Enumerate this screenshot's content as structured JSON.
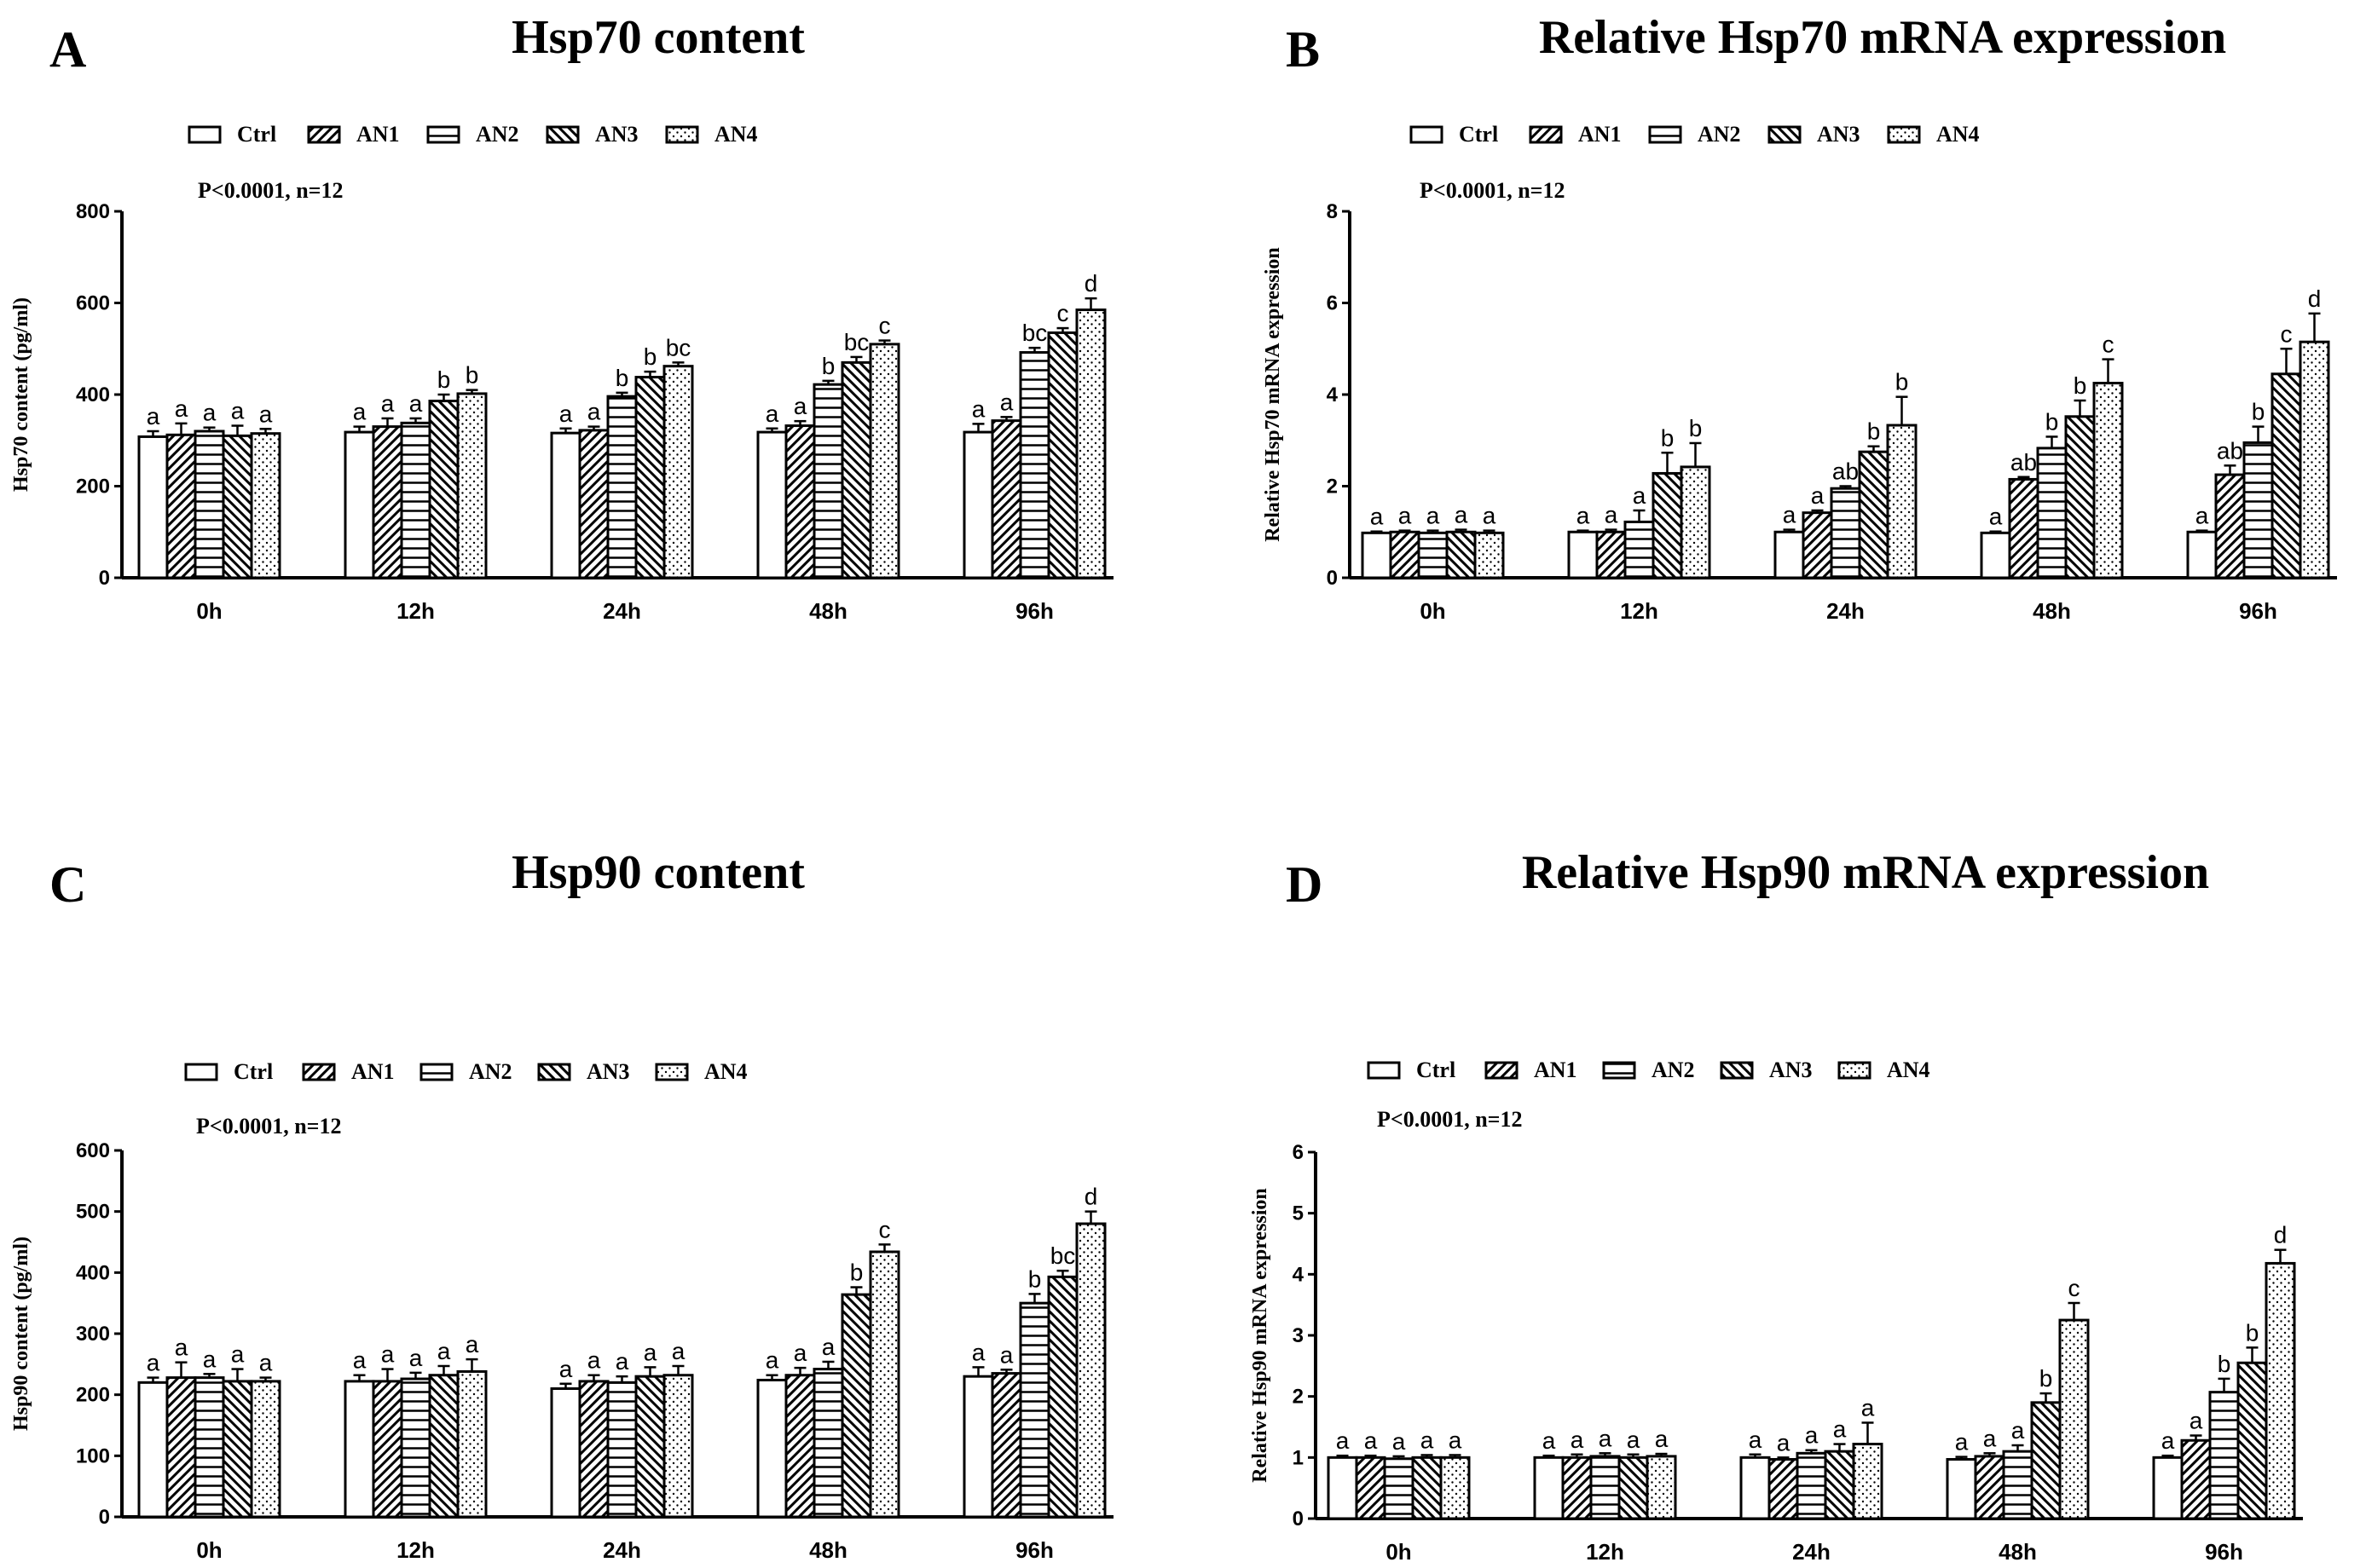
{
  "legend": [
    "Ctrl",
    "AN1",
    "AN2",
    "AN3",
    "AN4"
  ],
  "patterns": [
    "blank",
    "diag-right",
    "horizontal",
    "diag-left",
    "dots"
  ],
  "chart_data": [
    {
      "panel": "A",
      "title": "Hsp70 content",
      "type": "bar",
      "ylabel": "Hsp70 content (pg/ml)",
      "note": "P<0.0001, n=12",
      "ylim": [
        0,
        800
      ],
      "yticks": [
        0,
        200,
        400,
        600,
        800
      ],
      "categories": [
        "0h",
        "12h",
        "24h",
        "48h",
        "96h"
      ],
      "series": [
        {
          "name": "Ctrl",
          "values": [
            308,
            318,
            316,
            318,
            318
          ],
          "errors": [
            12,
            12,
            10,
            8,
            18
          ],
          "labels": [
            "a",
            "a",
            "a",
            "a",
            "a"
          ]
        },
        {
          "name": "AN1",
          "values": [
            312,
            330,
            322,
            332,
            343
          ],
          "errors": [
            25,
            18,
            8,
            10,
            8
          ],
          "labels": [
            "a",
            "a",
            "a",
            "a",
            "a"
          ]
        },
        {
          "name": "AN2",
          "values": [
            320,
            338,
            396,
            422,
            492
          ],
          "errors": [
            8,
            10,
            8,
            8,
            10
          ],
          "labels": [
            "a",
            "a",
            "b",
            "b",
            "bc"
          ]
        },
        {
          "name": "AN3",
          "values": [
            310,
            386,
            438,
            470,
            535
          ],
          "errors": [
            22,
            14,
            12,
            12,
            10
          ],
          "labels": [
            "a",
            "b",
            "b",
            "bc",
            "c"
          ]
        },
        {
          "name": "AN4",
          "values": [
            315,
            402,
            462,
            510,
            585
          ],
          "errors": [
            10,
            8,
            8,
            8,
            25
          ],
          "labels": [
            "a",
            "b",
            "bc",
            "c",
            "d"
          ]
        }
      ]
    },
    {
      "panel": "B",
      "title": "Relative Hsp70 mRNA expression",
      "type": "bar",
      "ylabel": "Relative Hsp70 mRNA expression",
      "note": "P<0.0001, n=12",
      "ylim": [
        0,
        8
      ],
      "yticks": [
        0,
        2,
        4,
        6,
        8
      ],
      "categories": [
        "0h",
        "12h",
        "24h",
        "48h",
        "96h"
      ],
      "series": [
        {
          "name": "Ctrl",
          "values": [
            0.98,
            1.0,
            1.0,
            0.98,
            1.0
          ],
          "errors": [
            0.03,
            0.03,
            0.05,
            0.03,
            0.03
          ],
          "labels": [
            "a",
            "a",
            "a",
            "a",
            "a"
          ]
        },
        {
          "name": "AN1",
          "values": [
            1.0,
            1.0,
            1.42,
            2.15,
            2.25
          ],
          "errors": [
            0.03,
            0.05,
            0.05,
            0.05,
            0.2
          ],
          "labels": [
            "a",
            "a",
            "a",
            "ab",
            "ab"
          ]
        },
        {
          "name": "AN2",
          "values": [
            0.98,
            1.22,
            1.95,
            2.83,
            2.95
          ],
          "errors": [
            0.05,
            0.25,
            0.05,
            0.25,
            0.35
          ],
          "labels": [
            "a",
            "a",
            "ab",
            "b",
            "b"
          ]
        },
        {
          "name": "AN3",
          "values": [
            1.0,
            2.28,
            2.75,
            3.52,
            4.45
          ],
          "errors": [
            0.05,
            0.45,
            0.12,
            0.35,
            0.55
          ],
          "labels": [
            "a",
            "b",
            "b",
            "b",
            "c"
          ]
        },
        {
          "name": "AN4",
          "values": [
            0.98,
            2.42,
            3.33,
            4.25,
            5.15
          ],
          "errors": [
            0.05,
            0.52,
            0.62,
            0.52,
            0.62
          ],
          "labels": [
            "a",
            "b",
            "b",
            "c",
            "d"
          ]
        }
      ]
    },
    {
      "panel": "C",
      "title": "Hsp90 content",
      "type": "bar",
      "ylabel": "Hsp90 content (pg/ml)",
      "note": "P<0.0001, n=12",
      "ylim": [
        0,
        600
      ],
      "yticks": [
        0,
        100,
        200,
        300,
        400,
        500,
        600
      ],
      "categories": [
        "0h",
        "12h",
        "24h",
        "48h",
        "96h"
      ],
      "series": [
        {
          "name": "Ctrl",
          "values": [
            220,
            222,
            210,
            224,
            230
          ],
          "errors": [
            8,
            10,
            8,
            8,
            15
          ],
          "labels": [
            "a",
            "a",
            "a",
            "a",
            "a"
          ]
        },
        {
          "name": "AN1",
          "values": [
            228,
            222,
            222,
            232,
            235
          ],
          "errors": [
            25,
            20,
            10,
            12,
            6
          ],
          "labels": [
            "a",
            "a",
            "a",
            "a",
            "a"
          ]
        },
        {
          "name": "AN2",
          "values": [
            228,
            226,
            220,
            242,
            350
          ],
          "errors": [
            6,
            10,
            10,
            12,
            15
          ],
          "labels": [
            "a",
            "a",
            "a",
            "a",
            "b"
          ]
        },
        {
          "name": "AN3",
          "values": [
            222,
            232,
            230,
            364,
            393
          ],
          "errors": [
            20,
            15,
            15,
            12,
            10
          ],
          "labels": [
            "a",
            "a",
            "a",
            "b",
            "bc"
          ]
        },
        {
          "name": "AN4",
          "values": [
            222,
            238,
            232,
            434,
            480
          ],
          "errors": [
            6,
            20,
            15,
            12,
            20
          ],
          "labels": [
            "a",
            "a",
            "a",
            "c",
            "d"
          ]
        }
      ]
    },
    {
      "panel": "D",
      "title": "Relative Hsp90 mRNA expression",
      "type": "bar",
      "ylabel": "Relative Hsp90 mRNA expression",
      "note": "P<0.0001, n=12",
      "ylim": [
        0,
        6
      ],
      "yticks": [
        0,
        1,
        2,
        3,
        4,
        5,
        6
      ],
      "categories": [
        "0h",
        "12h",
        "24h",
        "48h",
        "96h"
      ],
      "series": [
        {
          "name": "Ctrl",
          "values": [
            1.0,
            1.0,
            1.0,
            0.97,
            1.0
          ],
          "errors": [
            0.03,
            0.03,
            0.05,
            0.04,
            0.03
          ],
          "labels": [
            "a",
            "a",
            "a",
            "a",
            "a"
          ]
        },
        {
          "name": "AN1",
          "values": [
            1.0,
            1.0,
            0.97,
            1.02,
            1.28
          ],
          "errors": [
            0.03,
            0.05,
            0.03,
            0.05,
            0.08
          ],
          "labels": [
            "a",
            "a",
            "a",
            "a",
            "a"
          ]
        },
        {
          "name": "AN2",
          "values": [
            0.98,
            1.02,
            1.07,
            1.1,
            2.07
          ],
          "errors": [
            0.04,
            0.05,
            0.05,
            0.1,
            0.22
          ],
          "labels": [
            "a",
            "a",
            "a",
            "a",
            "b"
          ]
        },
        {
          "name": "AN3",
          "values": [
            1.0,
            1.0,
            1.1,
            1.9,
            2.55
          ],
          "errors": [
            0.04,
            0.05,
            0.12,
            0.15,
            0.25
          ],
          "labels": [
            "a",
            "a",
            "a",
            "b",
            "b"
          ]
        },
        {
          "name": "AN4",
          "values": [
            1.0,
            1.02,
            1.22,
            3.25,
            4.18
          ],
          "errors": [
            0.04,
            0.04,
            0.35,
            0.28,
            0.22
          ],
          "labels": [
            "a",
            "a",
            "a",
            "c",
            "d"
          ]
        }
      ]
    }
  ]
}
